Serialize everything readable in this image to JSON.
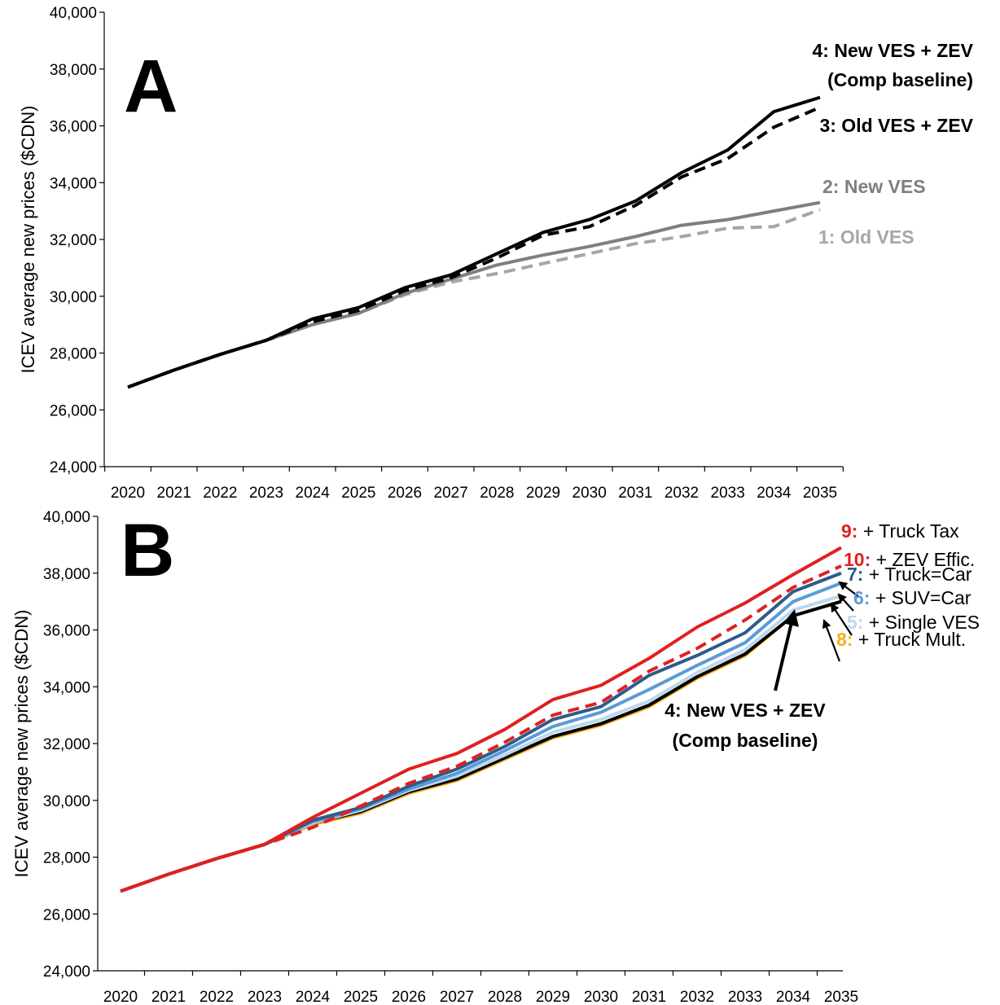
{
  "charts": [
    {
      "panel": "A",
      "chart_data": {
        "type": "line",
        "x": [
          2020,
          2021,
          2022,
          2023,
          2024,
          2025,
          2026,
          2027,
          2028,
          2029,
          2030,
          2031,
          2032,
          2033,
          2034,
          2035
        ],
        "ylabel": "ICEV average new prices ($CDN)",
        "ylim": [
          24000,
          40000
        ],
        "yticks": [
          "24,000",
          "26,000",
          "28,000",
          "30,000",
          "32,000",
          "34,000",
          "36,000",
          "38,000",
          "40,000"
        ],
        "xticks": [
          "2020",
          "2021",
          "2022",
          "2023",
          "2024",
          "2025",
          "2026",
          "2027",
          "2028",
          "2029",
          "2030",
          "2031",
          "2032",
          "2033",
          "2034",
          "2035"
        ],
        "series": [
          {
            "key": "s1",
            "values": [
              26800,
              27400,
              27950,
              28450,
              29000,
              29400,
              30050,
              30500,
              30800,
              31150,
              31500,
              31850,
              32100,
              32400,
              32450,
              33050
            ],
            "color": "#a6a6a6",
            "dash": true
          },
          {
            "key": "s2",
            "values": [
              26800,
              27400,
              27950,
              28450,
              29000,
              29400,
              30100,
              30600,
              31100,
              31450,
              31750,
              32100,
              32500,
              32700,
              33000,
              33300
            ],
            "color": "#7f7f7f",
            "dash": false
          },
          {
            "key": "s3",
            "values": [
              26800,
              27400,
              27950,
              28450,
              29100,
              29500,
              30200,
              30650,
              31350,
              32150,
              32450,
              33200,
              34200,
              34850,
              35950,
              36650
            ],
            "color": "#000000",
            "dash": true
          },
          {
            "key": "s4",
            "values": [
              26800,
              27400,
              27950,
              28450,
              29200,
              29600,
              30300,
              30750,
              31500,
              32250,
              32700,
              33350,
              34350,
              35150,
              36500,
              37000
            ],
            "color": "#000000",
            "dash": false
          }
        ]
      },
      "annotations": [
        {
          "key": "s4",
          "num": "4: New VES + ZEV",
          "text": "",
          "line2": "(Comp baseline)",
          "color": "#000000"
        },
        {
          "key": "s3",
          "num": "3: Old VES + ZEV",
          "text": "",
          "line2": "",
          "color": "#000000"
        },
        {
          "key": "s2",
          "num": "2: New VES",
          "text": "",
          "line2": "",
          "color": "#7f7f7f"
        },
        {
          "key": "s1",
          "num": "1: Old VES",
          "text": "",
          "line2": "",
          "color": "#a6a6a6"
        }
      ]
    },
    {
      "panel": "B",
      "chart_data": {
        "type": "line",
        "x": [
          2020,
          2021,
          2022,
          2023,
          2024,
          2025,
          2026,
          2027,
          2028,
          2029,
          2030,
          2031,
          2032,
          2033,
          2034,
          2035
        ],
        "ylabel": "ICEV average new prices ($CDN)",
        "ylim": [
          24000,
          40000
        ],
        "yticks": [
          "24,000",
          "26,000",
          "28,000",
          "30,000",
          "32,000",
          "34,000",
          "36,000",
          "38,000",
          "40,000"
        ],
        "xticks": [
          "2020",
          "2021",
          "2022",
          "2023",
          "2024",
          "2025",
          "2026",
          "2027",
          "2028",
          "2029",
          "2030",
          "2031",
          "2032",
          "2033",
          "2034",
          "2035"
        ],
        "series": [
          {
            "key": "s8",
            "values": [
              26800,
              27400,
              27950,
              28450,
              29150,
              29550,
              30250,
              30700,
              31450,
              32200,
              32650,
              33300,
              34300,
              35100,
              36500,
              37000
            ],
            "color": "#f5b120",
            "dash": false
          },
          {
            "key": "s4",
            "values": [
              26800,
              27400,
              27950,
              28450,
              29200,
              29600,
              30300,
              30750,
              31500,
              32250,
              32700,
              33350,
              34350,
              35150,
              36500,
              37000
            ],
            "color": "#000000",
            "dash": false
          },
          {
            "key": "s5",
            "values": [
              26800,
              27400,
              27950,
              28450,
              29200,
              29650,
              30350,
              30850,
              31600,
              32400,
              32850,
              33500,
              34500,
              35300,
              36700,
              37200
            ],
            "color": "#bdd7ee",
            "dash": false
          },
          {
            "key": "s6",
            "values": [
              26800,
              27400,
              27950,
              28450,
              29250,
              29700,
              30400,
              30950,
              31750,
              32600,
              33100,
              33900,
              34750,
              35550,
              37000,
              37650
            ],
            "color": "#5b9bd5",
            "dash": false
          },
          {
            "key": "s7",
            "values": [
              26800,
              27400,
              27950,
              28450,
              29300,
              29750,
              30500,
              31100,
              31900,
              32850,
              33300,
              34400,
              35100,
              35900,
              37350,
              38000
            ],
            "color": "#2e5c8a",
            "dash": false
          },
          {
            "key": "s10",
            "values": [
              26800,
              27400,
              27950,
              28450,
              29050,
              29800,
              30600,
              31200,
              32050,
              33000,
              33450,
              34550,
              35350,
              36350,
              37500,
              38250
            ],
            "color": "#e02020",
            "dash": true
          },
          {
            "key": "s9",
            "values": [
              26800,
              27400,
              27950,
              28450,
              29400,
              30250,
              31100,
              31650,
              32500,
              33550,
              34050,
              35000,
              36100,
              36950,
              37950,
              38900
            ],
            "color": "#e02020",
            "dash": false
          }
        ]
      },
      "annotations": [
        {
          "key": "s9",
          "num": "9:",
          "text": " + Truck Tax",
          "line2": "",
          "color": "#e02020"
        },
        {
          "key": "s10",
          "num": "10:",
          "text": " + ZEV Effic.",
          "line2": "",
          "color": "#e02020"
        },
        {
          "key": "s7",
          "num": "7:",
          "text": " + Truck=Car",
          "line2": "",
          "color": "#2e5c8a"
        },
        {
          "key": "s6",
          "num": "6:",
          "text": " + SUV=Car",
          "line2": "",
          "color": "#5b9bd5"
        },
        {
          "key": "s5",
          "num": "5:",
          "text": " + Single VES",
          "line2": "",
          "color": "#bdd7ee"
        },
        {
          "key": "s8",
          "num": "8:",
          "text": " + Truck Mult.",
          "line2": "",
          "color": "#f5b120"
        },
        {
          "key": "s4",
          "num": "4: New VES + ZEV",
          "text": "",
          "line2": "(Comp baseline)",
          "color": "#000000"
        }
      ]
    }
  ]
}
